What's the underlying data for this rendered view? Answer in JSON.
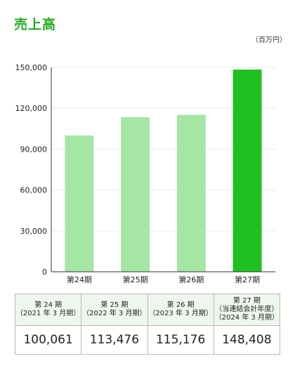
{
  "title": "売上高",
  "unit_label": "（百万円）",
  "chart_data": {
    "type": "bar",
    "title": "売上高",
    "categories": [
      "第24期",
      "第25期",
      "第26期",
      "第27期"
    ],
    "values": [
      100061,
      113476,
      115176,
      148408
    ],
    "ylim": [
      0,
      150000
    ],
    "yticks": [
      0,
      30000,
      60000,
      90000,
      120000,
      150000
    ],
    "ytick_labels": [
      "0",
      "30,000",
      "60,000",
      "90,000",
      "120,000",
      "150,000"
    ],
    "grid": true,
    "colors": [
      "#a5e6a5",
      "#a5e6a5",
      "#a5e6a5",
      "#1fc01f"
    ]
  },
  "table": {
    "headers": [
      [
        "第 24 期",
        "（2021 年 3 月期）"
      ],
      [
        "第 25 期",
        "（2022 年 3 月期）"
      ],
      [
        "第 26 期",
        "（2023 年 3 月期）"
      ],
      [
        "第 27 期",
        "（当連結会計年度）",
        "（2024 年 3 月期）"
      ]
    ],
    "values": [
      "100,061",
      "113,476",
      "115,176",
      "148,408"
    ]
  }
}
